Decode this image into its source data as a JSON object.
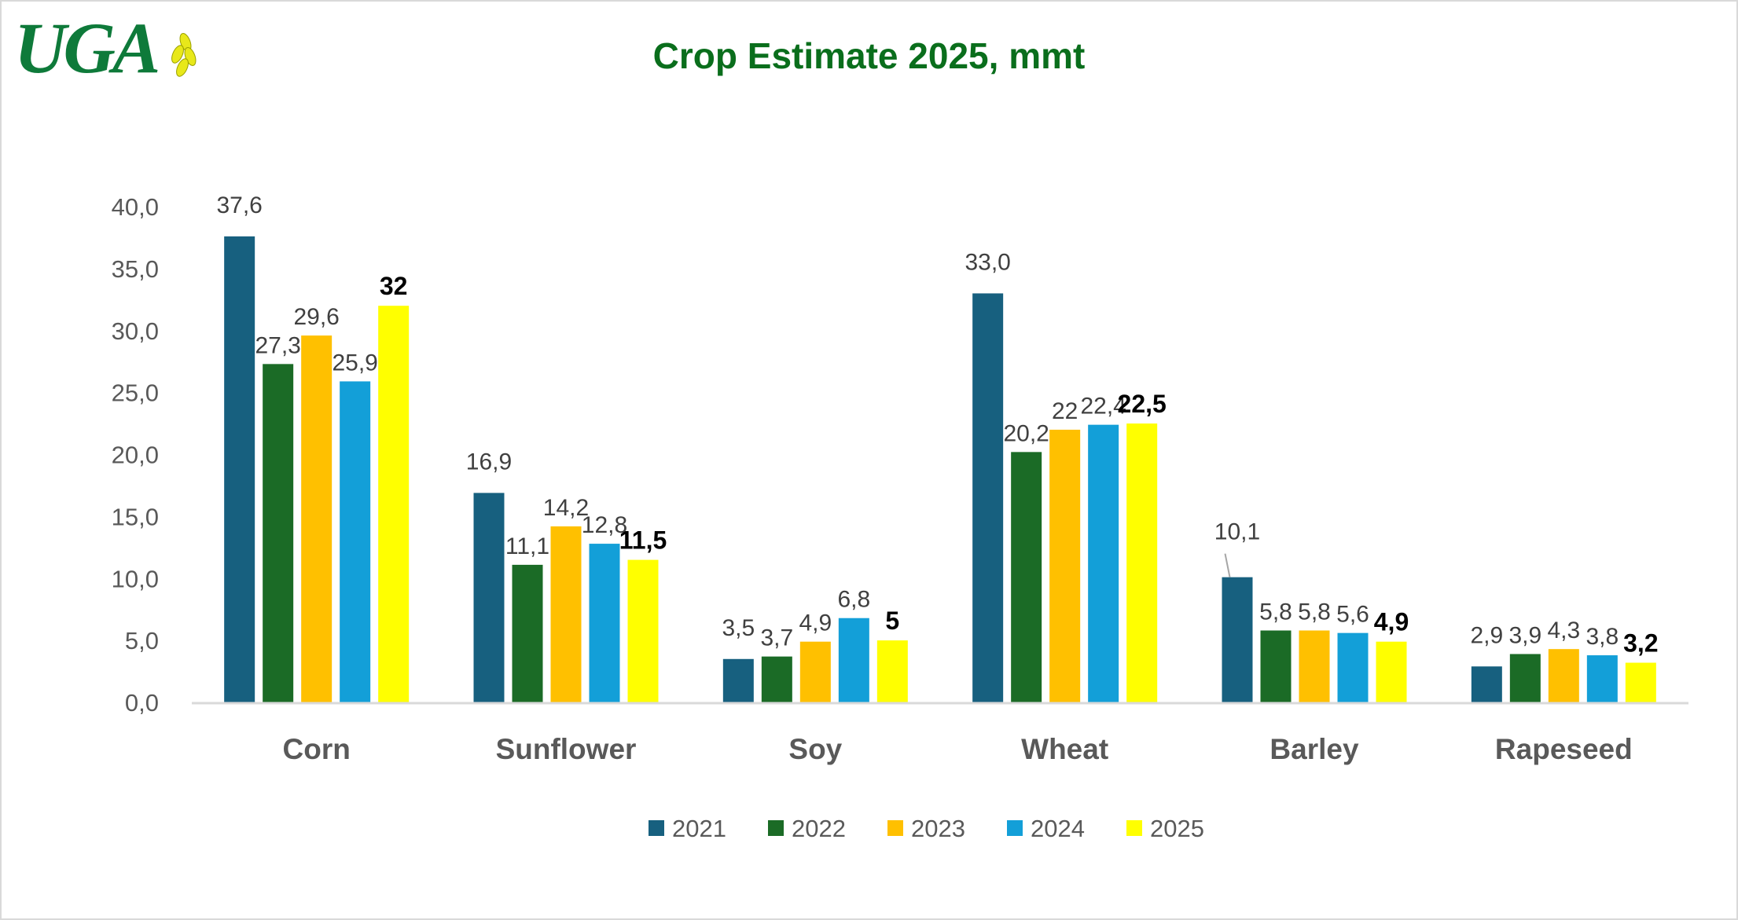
{
  "logo_text": "UGA",
  "chart_data": {
    "type": "bar",
    "title": "Crop Estimate 2025, mmt",
    "xlabel": "",
    "ylabel": "",
    "ylim": [
      0,
      40
    ],
    "yticks": [
      "0,0",
      "5,0",
      "10,0",
      "15,0",
      "20,0",
      "25,0",
      "30,0",
      "35,0",
      "40,0"
    ],
    "grid": false,
    "legend_position": "bottom",
    "categories": [
      "Corn",
      "Sunflower",
      "Soy",
      "Wheat",
      "Barley",
      "Rapeseed"
    ],
    "series": [
      {
        "name": "2021",
        "color": "#17607f",
        "values": [
          37.6,
          16.9,
          3.5,
          33.0,
          10.1,
          2.9
        ],
        "labels": [
          "37,6",
          "16,9",
          "3,5",
          "33,0",
          "10,1",
          "2,9"
        ]
      },
      {
        "name": "2022",
        "color": "#1b6b26",
        "values": [
          27.3,
          11.1,
          3.7,
          20.2,
          5.8,
          3.9
        ],
        "labels": [
          "27,3",
          "11,1",
          "3,7",
          "20,2",
          "5,8",
          "3,9"
        ]
      },
      {
        "name": "2023",
        "color": "#ffc000",
        "values": [
          29.6,
          14.2,
          4.9,
          22.0,
          5.8,
          4.3
        ],
        "labels": [
          "29,6",
          "14,2",
          "4,9",
          "22",
          "5,8",
          "4,3"
        ]
      },
      {
        "name": "2024",
        "color": "#139fd8",
        "values": [
          25.9,
          12.8,
          6.8,
          22.4,
          5.6,
          3.8
        ],
        "labels": [
          "25,9",
          "12,8",
          "6,8",
          "22,4",
          "5,6",
          "3,8"
        ]
      },
      {
        "name": "2025",
        "color": "#ffff00",
        "values": [
          32,
          11.5,
          5,
          22.5,
          4.9,
          3.2
        ],
        "labels": [
          "32",
          "11,5",
          "5",
          "22,5",
          "4,9",
          "3,2"
        ],
        "bold_labels": true
      }
    ]
  }
}
